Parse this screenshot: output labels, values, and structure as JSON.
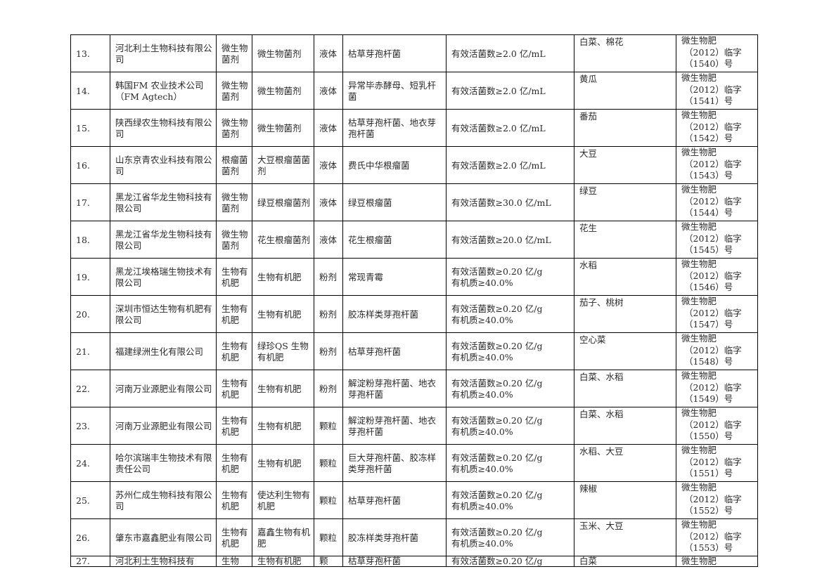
{
  "rows": [
    {
      "no": "13.",
      "company": "河北利土生物科技有限公司",
      "category": "微生物菌剂",
      "product": "微生物菌剂",
      "form": "液体",
      "strain": "枯草芽孢杆菌",
      "spec": [
        "有效活菌数≥2.0 亿/mL"
      ],
      "crop": "白菜、棉花",
      "reg": [
        "微生物肥",
        "（2012）临字",
        "（1540）号"
      ]
    },
    {
      "no": "14.",
      "company": "韩国FM 农业技术公司（FM Agtech）",
      "category": "微生物菌剂",
      "product": "微生物菌剂",
      "form": "液体",
      "strain": "异常毕赤酵母、短乳杆菌",
      "spec": [
        "有效活菌数≥2.0 亿/mL"
      ],
      "crop": "黄瓜",
      "reg": [
        "微生物肥",
        "（2012）临字",
        "（1541）号"
      ]
    },
    {
      "no": "15.",
      "company": "陕西绿农生物科技有限公司",
      "category": "微生物菌剂",
      "product": "微生物菌剂",
      "form": "液体",
      "strain": "枯草芽孢杆菌、地衣芽孢杆菌",
      "spec": [
        "有效活菌数≥2.0 亿/mL"
      ],
      "crop": "番茄",
      "reg": [
        "微生物肥",
        "（2012）临字",
        "（1542）号"
      ]
    },
    {
      "no": "16.",
      "company": "山东京青农业科技有限公司",
      "category": "根瘤菌菌剂",
      "product": "大豆根瘤菌菌剂",
      "form": "液体",
      "strain": "费氏中华根瘤菌",
      "spec": [
        "有效活菌数≥2.0 亿/mL"
      ],
      "crop": "大豆",
      "reg": [
        "微生物肥",
        "（2012）临字",
        "（1543）号"
      ]
    },
    {
      "no": "17.",
      "company": "黑龙江省华龙生物科技有限公司",
      "category": "微生物菌剂",
      "product": "绿豆根瘤菌剂",
      "form": "液体",
      "strain": "绿豆根瘤菌",
      "spec": [
        "有效活菌数≥30.0 亿/mL"
      ],
      "crop": "绿豆",
      "reg": [
        "微生物肥",
        "（2012）临字",
        "（1544）号"
      ]
    },
    {
      "no": "18.",
      "company": "黑龙江省华龙生物科技有限公司",
      "category": "微生物菌剂",
      "product": "花生根瘤菌剂",
      "form": "液体",
      "strain": "花生根瘤菌",
      "spec": [
        "有效活菌数≥20.0 亿/mL"
      ],
      "crop": "花生",
      "reg": [
        "微生物肥",
        "（2012）临字",
        "（1545）号"
      ]
    },
    {
      "no": "19.",
      "company": "黑龙江埃格瑞生物技术有限公司",
      "category": "生物有机肥",
      "product": "生物有机肥",
      "form": "粉剂",
      "strain": "常现青霉",
      "spec": [
        "有效活菌数≥0.20 亿/g",
        "有机质≥40.0%"
      ],
      "crop": "水稻",
      "reg": [
        "微生物肥",
        "（2012）临字",
        "（1546）号"
      ]
    },
    {
      "no": "20.",
      "company": "深圳市恒达生物有机肥有限公司",
      "category": "生物有机肥",
      "product": "生物有机肥",
      "form": "粉剂",
      "strain": "胶冻样类芽孢杆菌",
      "spec": [
        "有效活菌数≥0.20 亿/g",
        "有机质≥40.0%"
      ],
      "crop": "茄子、桃树",
      "reg": [
        "微生物肥",
        "（2012）临字",
        "（1547）号"
      ]
    },
    {
      "no": "21.",
      "company": "福建绿洲生化有限公司",
      "category": "生物有机肥",
      "product": "绿珍QS 生物有机肥",
      "form": "粉剂",
      "strain": "枯草芽孢杆菌",
      "spec": [
        "有效活菌数≥0.20 亿/g",
        "有机质≥40.0%"
      ],
      "crop": "空心菜",
      "reg": [
        "微生物肥",
        "（2012）临字",
        "（1548）号"
      ]
    },
    {
      "no": "22.",
      "company": "河南万业源肥业有限公司",
      "category": "生物有机肥",
      "product": "生物有机肥",
      "form": "粉剂",
      "strain": "解淀粉芽孢杆菌、地衣芽孢杆菌",
      "spec": [
        "有效活菌数≥0.20 亿/g",
        "有机质≥40.0%"
      ],
      "crop": "白菜、水稻",
      "reg": [
        "微生物肥",
        "（2012）临字",
        "（1549）号"
      ]
    },
    {
      "no": "23.",
      "company": "河南万业源肥业有限公司",
      "category": "生物有机肥",
      "product": "生物有机肥",
      "form": "颗粒",
      "strain": "解淀粉芽孢杆菌、地衣芽孢杆菌",
      "spec": [
        "有效活菌数≥0.20 亿/g",
        "有机质≥40.0%"
      ],
      "crop": "白菜、水稻",
      "reg": [
        "微生物肥",
        "（2012）临字",
        "（1550）号"
      ]
    },
    {
      "no": "24.",
      "company": "哈尔滨瑞丰生物技术有限责任公司",
      "category": "生物有机肥",
      "product": "生物有机肥",
      "form": "颗粒",
      "strain": "巨大芽孢杆菌、胶冻样类芽孢杆菌",
      "spec": [
        "有效活菌数≥0.20 亿/g",
        "有机质≥40.0%"
      ],
      "crop": "水稻、大豆",
      "reg": [
        "微生物肥",
        "（2012）临字",
        "（1551）号"
      ]
    },
    {
      "no": "25.",
      "company": "苏州仁成生物科技有限公司",
      "category": "生物有机肥",
      "product": "使达利生物有机肥",
      "form": "颗粒",
      "strain": "枯草芽孢杆菌",
      "spec": [
        "有效活菌数≥0.20 亿/g",
        "有机质≥40.0%"
      ],
      "crop": "辣椒",
      "reg": [
        "微生物肥",
        "（2012）临字",
        "（1552）号"
      ]
    },
    {
      "no": "26.",
      "company": "肇东市嘉鑫肥业有限公司",
      "category": "生物有机肥",
      "product": "嘉鑫生物有机肥",
      "form": "颗粒",
      "strain": "胶冻样类芽孢杆菌",
      "spec": [
        "有效活菌数≥0.20 亿/g",
        "有机质≥40.0%"
      ],
      "crop": "玉米、大豆",
      "reg": [
        "微生物肥",
        "（2012）临字",
        "（1553）号"
      ]
    }
  ],
  "last_row": {
    "no": "27.",
    "company": "河北利土生物科技有",
    "category": "生物",
    "product": "生物有机肥",
    "form": "颗",
    "strain": "枯草芽孢杆菌",
    "spec": "有效活菌数≥0.20 亿/g",
    "crop": "白菜",
    "reg": "微生物肥"
  }
}
